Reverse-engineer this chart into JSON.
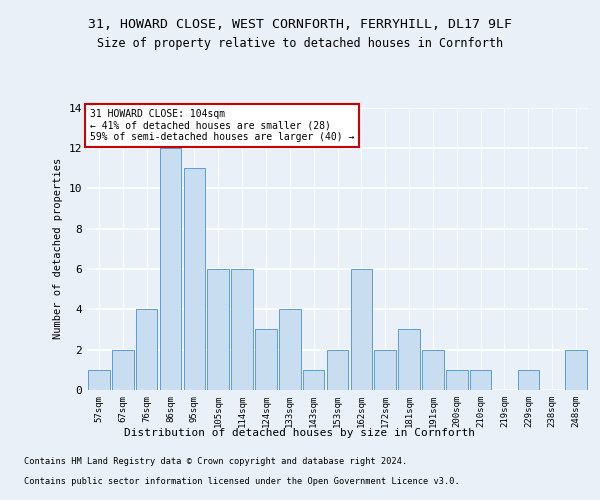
{
  "title1": "31, HOWARD CLOSE, WEST CORNFORTH, FERRYHILL, DL17 9LF",
  "title2": "Size of property relative to detached houses in Cornforth",
  "xlabel": "Distribution of detached houses by size in Cornforth",
  "ylabel": "Number of detached properties",
  "categories": [
    "57sqm",
    "67sqm",
    "76sqm",
    "86sqm",
    "95sqm",
    "105sqm",
    "114sqm",
    "124sqm",
    "133sqm",
    "143sqm",
    "153sqm",
    "162sqm",
    "172sqm",
    "181sqm",
    "191sqm",
    "200sqm",
    "210sqm",
    "219sqm",
    "229sqm",
    "238sqm",
    "248sqm"
  ],
  "values": [
    1,
    2,
    4,
    12,
    11,
    6,
    6,
    3,
    4,
    1,
    2,
    6,
    2,
    3,
    2,
    1,
    1,
    0,
    1,
    0,
    2
  ],
  "bar_color": "#c9ddf0",
  "bar_edge_color": "#5b9bd5",
  "annotation_title": "31 HOWARD CLOSE: 104sqm",
  "annotation_line1": "← 41% of detached houses are smaller (28)",
  "annotation_line2": "59% of semi-detached houses are larger (40) →",
  "annotation_box_color": "#ffffff",
  "annotation_box_edge_color": "#cc0000",
  "footnote1": "Contains HM Land Registry data © Crown copyright and database right 2024.",
  "footnote2": "Contains public sector information licensed under the Open Government Licence v3.0.",
  "ylim": [
    0,
    14
  ],
  "yticks": [
    0,
    2,
    4,
    6,
    8,
    10,
    12,
    14
  ],
  "bg_color": "#eaf0f8",
  "plot_bg_color": "#eaf0f8"
}
